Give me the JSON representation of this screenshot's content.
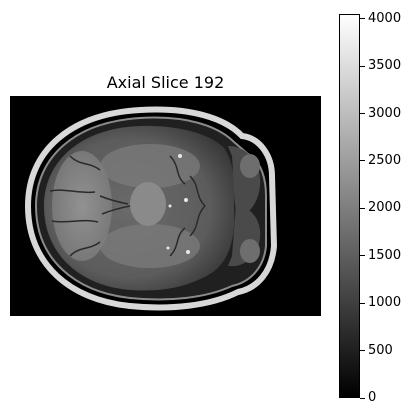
{
  "figure": {
    "title": "Axial Slice 192",
    "colorbar": {
      "min": 0,
      "max": 4050,
      "ticks": [
        "0",
        "500",
        "1000",
        "1500",
        "2000",
        "2500",
        "3000",
        "3500",
        "4000"
      ]
    }
  }
}
